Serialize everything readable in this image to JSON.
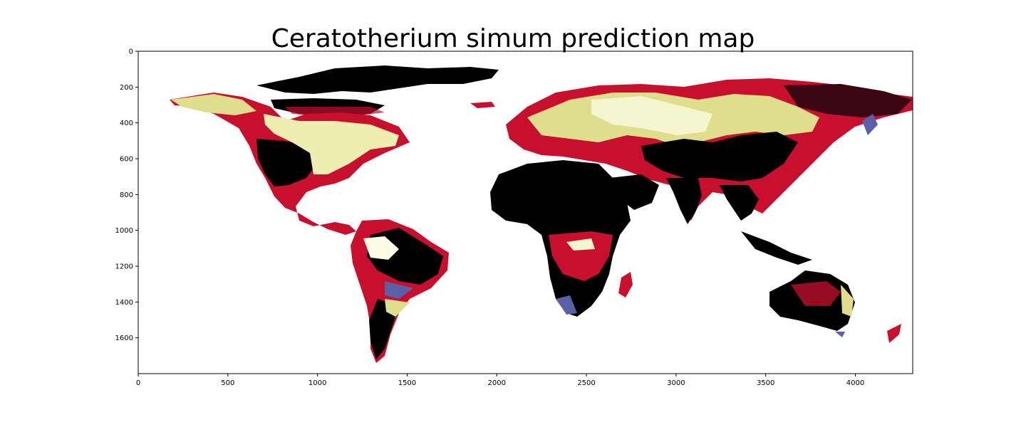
{
  "title": "Ceratotherium simum prediction map",
  "axes": {
    "x_ticks": [
      "0",
      "500",
      "1000",
      "1500",
      "2000",
      "2500",
      "3000",
      "3500",
      "4000"
    ],
    "y_ticks": [
      "0",
      "200",
      "400",
      "600",
      "800",
      "1000",
      "1200",
      "1400",
      "1600"
    ],
    "x_range": [
      0,
      4320
    ],
    "y_range": [
      0,
      1800
    ],
    "y_inverted": true
  },
  "colors": {
    "high": "#000000",
    "high_mid": "#c8102e",
    "mid": "#5a5fa8",
    "low": "#dede8c",
    "none": "#ffffff"
  }
}
